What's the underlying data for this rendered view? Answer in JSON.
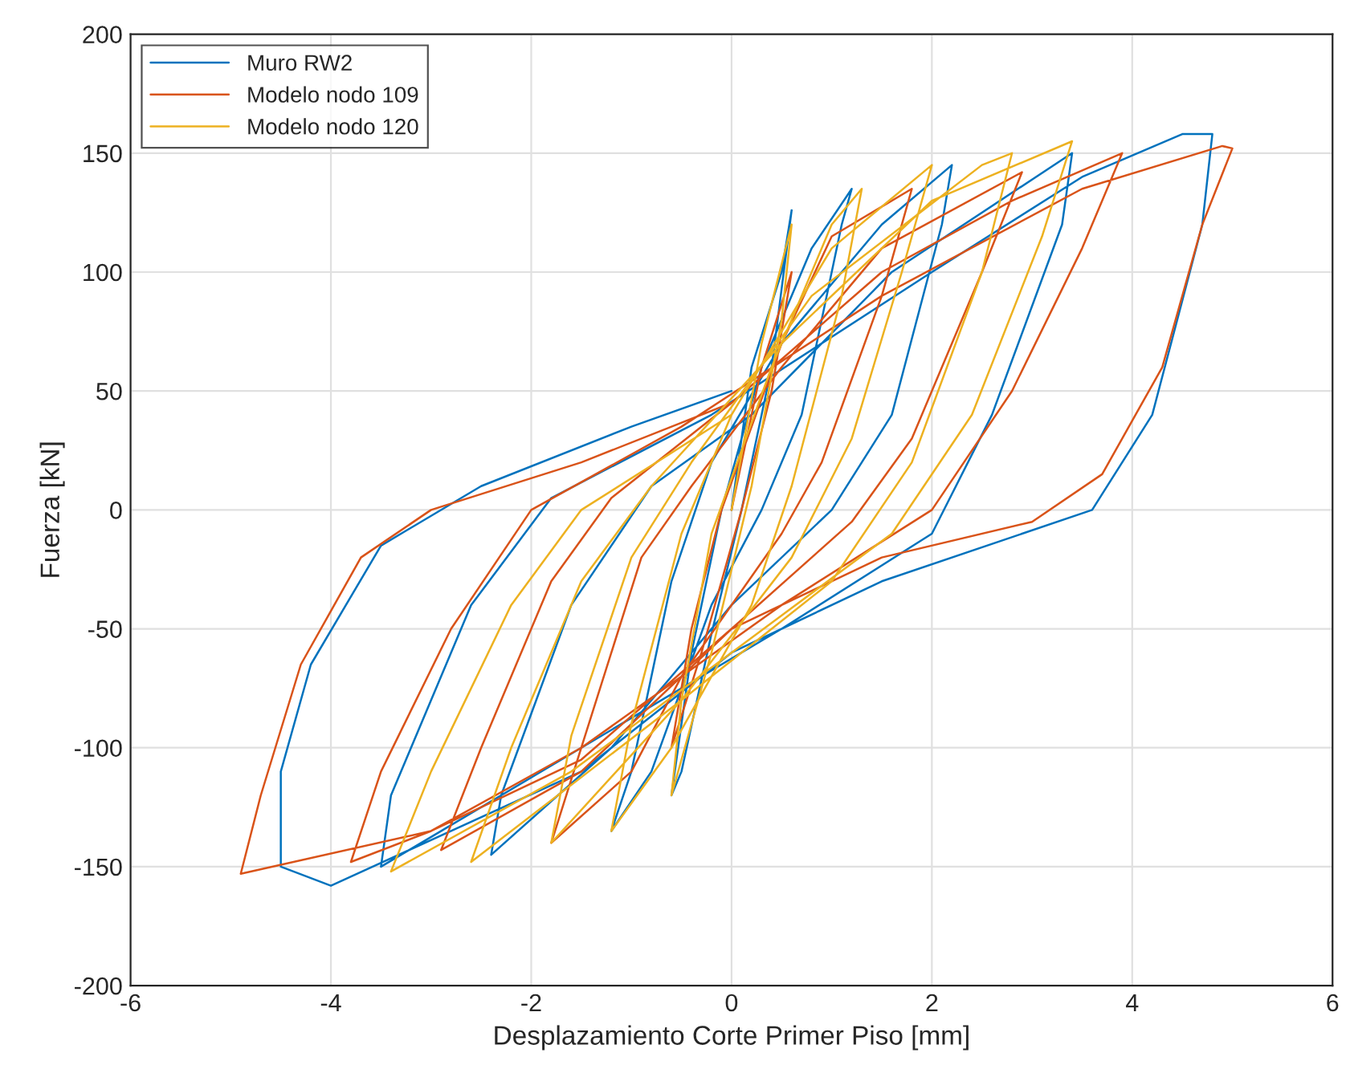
{
  "chart_data": {
    "type": "line",
    "xlabel": "Desplazamiento Corte Primer Piso [mm]",
    "ylabel": "Fuerza [kN]",
    "xlim": [
      -6,
      6
    ],
    "xticks": [
      -6,
      -4,
      -2,
      0,
      2,
      4,
      6
    ],
    "ylim": [
      -200,
      200
    ],
    "yticks": [
      -200,
      -150,
      -100,
      -50,
      0,
      50,
      100,
      150,
      200
    ],
    "grid": true,
    "legend": "top left",
    "line_style": "solid",
    "marker": "none",
    "series": [
      {
        "name": "Muro RW2",
        "color": "#0072bd",
        "x": [
          0,
          0.2,
          0.5,
          0.6,
          0.4,
          0.1,
          -0.2,
          -0.5,
          -0.6,
          -0.4,
          -0.1,
          0.3,
          0.8,
          1.2,
          1.1,
          0.7,
          0.3,
          -0.2,
          -0.8,
          -1.2,
          -1.0,
          -0.6,
          -0.2,
          0.5,
          1.5,
          2.2,
          2.1,
          1.6,
          1.0,
          0,
          -1.2,
          -2.4,
          -2.3,
          -1.6,
          -0.8,
          0.2,
          1.6,
          3.4,
          3.3,
          2.6,
          2.0,
          0.5,
          -1.5,
          -3.5,
          -3.4,
          -2.6,
          -1.8,
          -0.2,
          2.0,
          3.5,
          4.5,
          4.8,
          4.7,
          4.2,
          3.6,
          1.5,
          0,
          -1.5,
          -4.0,
          -4.5,
          -4.5,
          -4.2,
          -3.5,
          -2.5,
          -1.0,
          0
        ],
        "values": [
          0,
          60,
          100,
          126,
          60,
          0,
          -52,
          -110,
          -120,
          -60,
          0,
          60,
          110,
          135,
          120,
          40,
          0,
          -40,
          -110,
          -135,
          -110,
          -30,
          20,
          70,
          120,
          145,
          120,
          40,
          0,
          -40,
          -100,
          -145,
          -120,
          -40,
          10,
          40,
          100,
          150,
          120,
          40,
          -10,
          -50,
          -100,
          -150,
          -120,
          -40,
          5,
          40,
          100,
          140,
          158,
          158,
          120,
          40,
          0,
          -30,
          -60,
          -110,
          -158,
          -150,
          -110,
          -65,
          -15,
          10,
          35,
          50
        ]
      },
      {
        "name": "Modelo nodo 109",
        "color": "#d95319",
        "x": [
          0,
          0.3,
          0.6,
          0.4,
          0.1,
          -0.3,
          -0.6,
          -0.4,
          -0.1,
          0.5,
          1.0,
          1.8,
          1.5,
          0.9,
          0.5,
          -0.5,
          -1.0,
          -1.8,
          -1.5,
          -0.9,
          -0.4,
          0.5,
          1.5,
          2.9,
          2.5,
          1.8,
          1.2,
          0,
          -1.5,
          -2.9,
          -2.5,
          -1.8,
          -1.2,
          0,
          1.5,
          2.8,
          3.9,
          3.5,
          2.8,
          2.0,
          0.5,
          -1.5,
          -3.0,
          -3.8,
          -3.5,
          -2.8,
          -2.0,
          -0.5,
          1.5,
          3.5,
          4.9,
          5.0,
          4.7,
          4.3,
          3.7,
          3.0,
          1.5,
          0,
          -1.5,
          -3.0,
          -4.9,
          -4.7,
          -4.3,
          -3.7,
          -3.0,
          -1.5,
          0
        ],
        "values": [
          0,
          60,
          100,
          50,
          0,
          -60,
          -100,
          -50,
          0,
          70,
          115,
          135,
          90,
          20,
          -10,
          -70,
          -110,
          -140,
          -100,
          -20,
          10,
          60,
          110,
          142,
          100,
          30,
          -5,
          -50,
          -110,
          -143,
          -100,
          -30,
          5,
          45,
          100,
          130,
          150,
          110,
          50,
          0,
          -40,
          -100,
          -135,
          -148,
          -110,
          -50,
          0,
          35,
          90,
          135,
          153,
          152,
          120,
          60,
          15,
          -5,
          -20,
          -50,
          -105,
          -135,
          -153,
          -120,
          -65,
          -20,
          0,
          20,
          45
        ]
      },
      {
        "name": "Modelo nodo 120",
        "color": "#edb120",
        "x": [
          0,
          0.3,
          0.6,
          0.5,
          0.2,
          -0.2,
          -0.6,
          -0.5,
          -0.2,
          0.4,
          1.0,
          1.3,
          1.1,
          0.6,
          0.2,
          -0.6,
          -1.2,
          -1.0,
          -0.5,
          0,
          1.0,
          2.0,
          1.7,
          1.2,
          0.6,
          -0.5,
          -1.8,
          -1.6,
          -1.0,
          -0.4,
          0.8,
          2.5,
          2.8,
          2.5,
          1.8,
          1.0,
          -0.5,
          -2.6,
          -2.2,
          -1.5,
          -0.8,
          0.5,
          2.0,
          3.4,
          3.1,
          2.4,
          1.6,
          0,
          -1.6,
          -3.4,
          -3.0,
          -2.2,
          -1.5,
          0
        ],
        "values": [
          0,
          70,
          120,
          80,
          10,
          -60,
          -120,
          -80,
          -10,
          60,
          120,
          135,
          90,
          10,
          -40,
          -100,
          -135,
          -90,
          -10,
          40,
          110,
          145,
          100,
          30,
          -20,
          -80,
          -140,
          -95,
          -20,
          20,
          90,
          145,
          150,
          100,
          20,
          -30,
          -80,
          -148,
          -100,
          -30,
          10,
          70,
          130,
          155,
          115,
          40,
          -10,
          -60,
          -110,
          -152,
          -110,
          -40,
          0,
          40
        ]
      }
    ]
  }
}
